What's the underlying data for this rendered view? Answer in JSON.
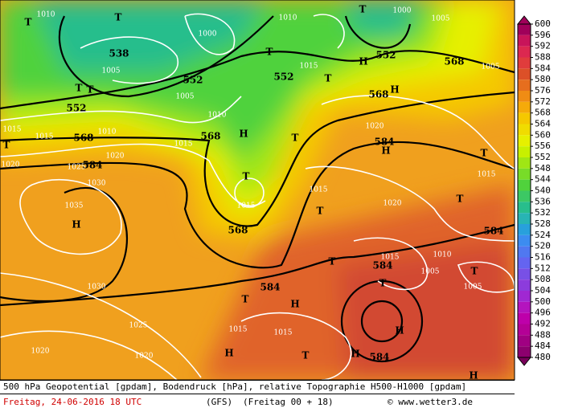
{
  "map": {
    "labels": [
      "1010",
      "T",
      "T",
      "538",
      "1005",
      "T",
      "T",
      "552",
      "552",
      "1005",
      "1000",
      "1010",
      "T",
      "552",
      "1015",
      "T",
      "T",
      "1000",
      "1005",
      "H",
      "552",
      "568",
      "1005",
      "H",
      "568",
      "1010",
      "1010",
      "568",
      "1015",
      "1015",
      "T",
      "1020",
      "1015",
      "568",
      "H",
      "T",
      "1020",
      "1025",
      "584",
      "1030",
      "T",
      "1015",
      "1015",
      "1020",
      "584",
      "H",
      "T",
      "1015",
      "T",
      "1020",
      "T",
      "1035",
      "H",
      "568",
      "584",
      "1015",
      "1010",
      "584",
      "T",
      "T",
      "1005",
      "T",
      "1005",
      "1030",
      "584",
      "T",
      "H",
      "1025",
      "1015",
      "1015",
      "H",
      "1020",
      "1020",
      "H",
      "T",
      "H",
      "584",
      "H"
    ],
    "legend": {
      "values": [
        600,
        596,
        592,
        588,
        584,
        580,
        576,
        572,
        568,
        564,
        560,
        556,
        552,
        548,
        544,
        540,
        536,
        532,
        528,
        524,
        520,
        516,
        512,
        508,
        504,
        500,
        496,
        492,
        488,
        484,
        480
      ],
      "colors": [
        "#a0005a",
        "#c8145a",
        "#dc2850",
        "#e03c3c",
        "#dc5028",
        "#e66e1e",
        "#f08c14",
        "#f5aa0a",
        "#f5c800",
        "#f0dc00",
        "#e6f000",
        "#c8f000",
        "#a0e614",
        "#78dc28",
        "#50d23c",
        "#3cc864",
        "#28be8c",
        "#28b4b4",
        "#28a0dc",
        "#3c8cf0",
        "#5078f0",
        "#6464f0",
        "#7850e6",
        "#8c3cdc",
        "#a028d2",
        "#b414be",
        "#be00aa",
        "#b40096",
        "#a00082",
        "#8c006e",
        "#78005a"
      ]
    },
    "footer": {
      "description": "500 hPa Geopotential [gpdam], Bodendruck [hPa], relative Topographie H500-H1000 [gpdam]",
      "date": "Freitag, 24-06-2016  18 UTC",
      "model": "(GFS)",
      "run": "(Freitag 00 + 18)",
      "source": "© www.wetter3.de"
    }
  }
}
